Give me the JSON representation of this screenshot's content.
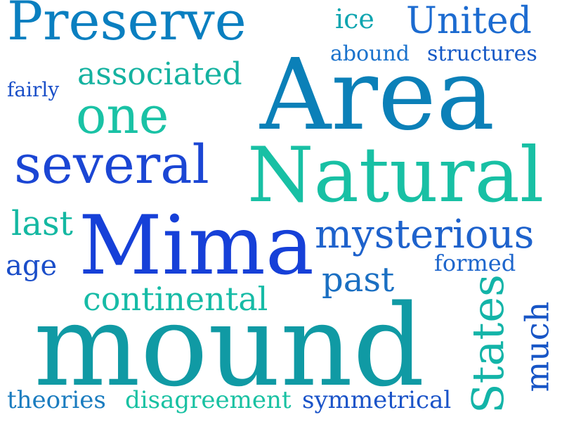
{
  "word_cloud": {
    "words": {
      "preserve": "Preserve",
      "ice": "ice",
      "united": "United",
      "abound": "abound",
      "structures": "structures",
      "associated": "associated",
      "fairly": "fairly",
      "area": "Area",
      "one": "one",
      "several": "several",
      "natural": "Natural",
      "last": "last",
      "mima": "Mima",
      "mysterious": "mysterious",
      "age": "age",
      "formed": "formed",
      "past": "past",
      "continental": "continental",
      "mound": "mound",
      "states": "States",
      "much": "much",
      "theories": "theories",
      "disagreement": "disagreement",
      "symmetrical": "symmetrical"
    },
    "colors": {
      "background": "#ffffff",
      "palette": [
        "#0a7fc0",
        "#1b46d4",
        "#18c0a4",
        "#109aa4",
        "#1e62cc"
      ]
    }
  }
}
